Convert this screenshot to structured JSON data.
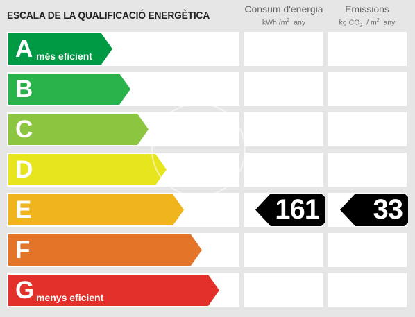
{
  "header": {
    "title": "ESCALA DE LA QUALIFICACIÓ ENERGÈTICA",
    "col_consum": {
      "title": "Consum d'energia",
      "unit_pre": "kWh /m",
      "unit_sup": "2",
      "unit_post": "  any"
    },
    "col_emissions": {
      "title": "Emissions",
      "unit_pre": "kg CO",
      "unit_sub": "2",
      "unit_mid": "  / m",
      "unit_sup": "2",
      "unit_post": "  any"
    }
  },
  "ratings": [
    {
      "letter": "A",
      "label": "més eficient",
      "color": "#009a44"
    },
    {
      "letter": "B",
      "label": "",
      "color": "#2bb34b"
    },
    {
      "letter": "C",
      "label": "",
      "color": "#8cc540"
    },
    {
      "letter": "D",
      "label": "",
      "color": "#e6e51e"
    },
    {
      "letter": "E",
      "label": "",
      "color": "#f0b41c"
    },
    {
      "letter": "F",
      "label": "",
      "color": "#e47528"
    },
    {
      "letter": "G",
      "label": "menys eficient",
      "color": "#e3302b"
    }
  ],
  "result": {
    "rating": "E",
    "consum": "161",
    "emissions": "33"
  }
}
